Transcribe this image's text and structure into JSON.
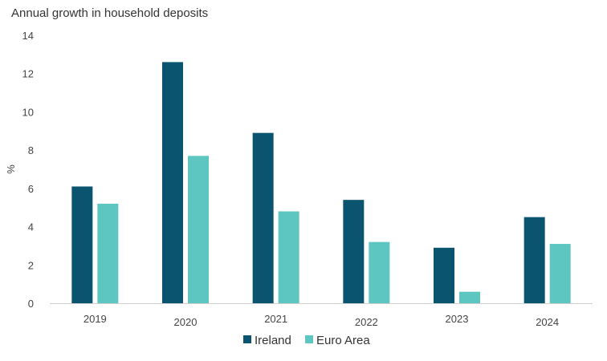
{
  "chart_data": {
    "type": "bar",
    "title": "Annual growth in household deposits",
    "xlabel": "",
    "ylabel": "%",
    "ylim": [
      0,
      14
    ],
    "yticks": [
      0,
      2,
      4,
      6,
      8,
      10,
      12,
      14
    ],
    "categories": [
      "2019",
      "2020",
      "2021",
      "2022",
      "2023",
      "2024"
    ],
    "series": [
      {
        "name": "Ireland",
        "color": "#0b5470",
        "values": [
          6.1,
          12.6,
          8.9,
          5.4,
          2.9,
          4.5
        ]
      },
      {
        "name": "Euro Area",
        "color": "#5ec6c1",
        "values": [
          5.2,
          7.7,
          4.8,
          3.2,
          0.6,
          3.1
        ]
      }
    ],
    "grid": false,
    "legend": "bottom-center"
  }
}
